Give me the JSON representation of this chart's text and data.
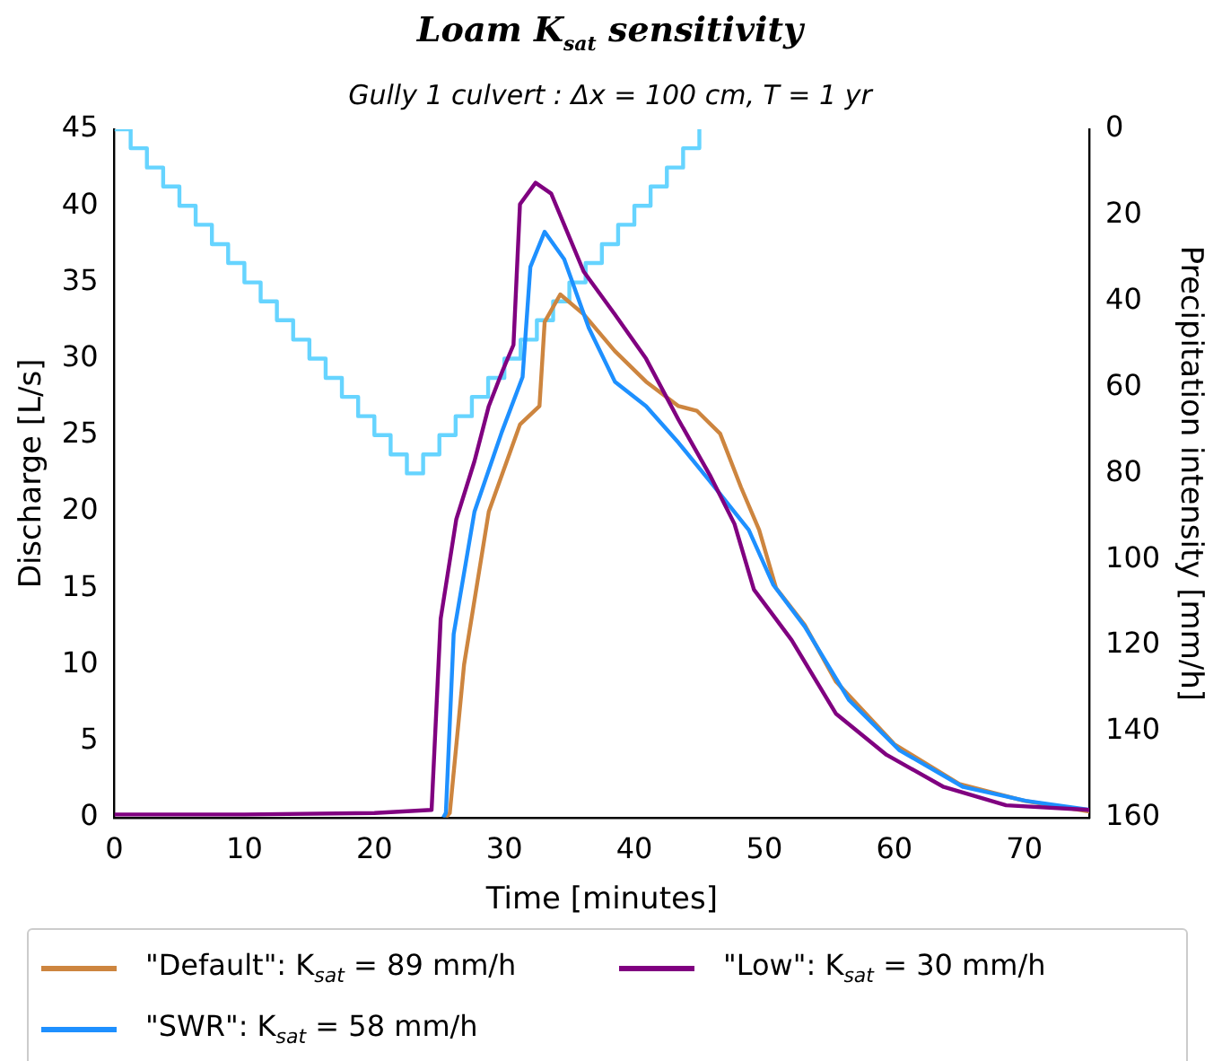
{
  "chart_data": {
    "type": "line",
    "title": "Loam K$_{sat}$ sensitivity",
    "subtitle": "Gully 1 culvert :  Δx = 100 cm, T = 1 yr",
    "xlabel": "Time [minutes]",
    "ylabel": "Discharge [L/s]",
    "y2label": "Precipitation intensity [mm/h]",
    "xlim": [
      0,
      75
    ],
    "xticks": [
      0,
      10,
      20,
      30,
      40,
      50,
      60,
      70
    ],
    "ylim": [
      0,
      45
    ],
    "yticks": [
      0,
      5,
      10,
      15,
      20,
      25,
      30,
      35,
      40,
      45
    ],
    "y2lim": [
      160,
      0
    ],
    "y2ticks": [
      0,
      20,
      40,
      60,
      80,
      100,
      120,
      140,
      160
    ],
    "grid": false,
    "legend": "bottom",
    "marker": "none",
    "line_style": "solid",
    "series": [
      {
        "name": "\"Default\": K$_{sat}$ = 89 mm/h",
        "color": "#cd853f",
        "x": [
          25.5,
          25.8,
          26.9,
          28.8,
          31.2,
          32.7,
          33.1,
          34.3,
          36.1,
          38.5,
          40.9,
          43.4,
          44.8,
          46.6,
          48.2,
          49.6,
          50.9,
          53.1,
          55.5,
          60,
          65,
          70,
          75
        ],
        "values": [
          0,
          0.3,
          10,
          20,
          25.7,
          26.9,
          32.4,
          34.2,
          32.9,
          30.5,
          28.5,
          26.9,
          26.6,
          25.1,
          21.6,
          18.8,
          15,
          12.6,
          8.9,
          4.8,
          2.2,
          1.1,
          0.4
        ]
      },
      {
        "name": "\"SWR\": K$_{sat}$ = 58 mm/h",
        "color": "#1e90ff",
        "x": [
          25.3,
          25.5,
          26.1,
          27.7,
          29.8,
          31.4,
          32,
          33.1,
          34.6,
          36.5,
          38.5,
          40.9,
          43.4,
          45.8,
          48.8,
          50.7,
          53.1,
          56.5,
          60.4,
          65.3,
          70.1,
          75
        ],
        "values": [
          0,
          0.3,
          12,
          20,
          25.2,
          28.8,
          36,
          38.3,
          36.5,
          32,
          28.5,
          26.9,
          24.5,
          22,
          18.8,
          15.2,
          12.5,
          7.7,
          4.4,
          2,
          1.1,
          0.5
        ]
      },
      {
        "name": "\"Low\": K$_{sat}$ = 30 mm/h",
        "color": "#800080",
        "x": [
          0,
          10,
          20,
          24.4,
          25.1,
          26.3,
          27.7,
          28.8,
          29.9,
          30.7,
          31.2,
          32.4,
          33.6,
          36.1,
          38.5,
          40.9,
          43.4,
          45.8,
          47.7,
          49.2,
          50.7,
          52.1,
          55.5,
          59.4,
          63.8,
          68.6,
          75
        ],
        "values": [
          0.2,
          0.2,
          0.3,
          0.5,
          13,
          19.5,
          23.3,
          26.9,
          29.3,
          30.9,
          40.1,
          41.5,
          40.8,
          35.7,
          32.9,
          30,
          26,
          22.4,
          19.2,
          14.9,
          13.2,
          11.6,
          6.8,
          4.1,
          2,
          0.8,
          0.5
        ]
      },
      {
        "type": "step",
        "axis": "y2",
        "color": "#66d4ff",
        "x": [
          0,
          1.25,
          2.5,
          3.75,
          5,
          6.25,
          7.5,
          8.75,
          10,
          11.25,
          12.5,
          13.75,
          15,
          16.25,
          17.5,
          18.75,
          20,
          21.25,
          22.5,
          23.75,
          25,
          26.25,
          27.5,
          28.75,
          30,
          31.25,
          32.5,
          33.75,
          35,
          36.25,
          37.5,
          38.75,
          40,
          41.25,
          42.5,
          43.75,
          45
        ],
        "values": [
          0,
          4.4,
          8.9,
          13.3,
          17.8,
          22.2,
          26.7,
          31.1,
          35.6,
          40,
          44.4,
          48.9,
          53.3,
          57.8,
          62.2,
          66.7,
          71.1,
          75.6,
          80,
          75.6,
          71.1,
          66.7,
          62.2,
          57.8,
          53.3,
          48.9,
          44.4,
          40,
          35.6,
          31.1,
          26.7,
          22.2,
          17.8,
          13.3,
          8.9,
          4.4,
          0
        ]
      }
    ]
  }
}
